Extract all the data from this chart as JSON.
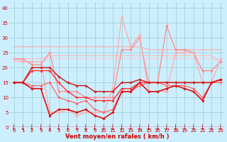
{
  "x": [
    0,
    1,
    2,
    3,
    4,
    5,
    6,
    7,
    8,
    9,
    10,
    11,
    12,
    13,
    14,
    15,
    16,
    17,
    18,
    19,
    20,
    21,
    22,
    23
  ],
  "series": [
    {
      "color": "#ffaaaa",
      "linewidth": 0.8,
      "marker": null,
      "zorder": 1,
      "y": [
        27,
        27,
        27,
        27,
        27,
        27,
        27,
        27,
        27,
        27,
        27,
        27,
        27,
        27,
        27,
        26,
        26,
        26,
        26,
        26,
        26,
        26,
        26,
        26
      ]
    },
    {
      "color": "#ffbbbb",
      "linewidth": 0.8,
      "marker": null,
      "zorder": 1,
      "y": [
        23,
        23,
        23,
        23,
        24,
        24,
        24,
        24,
        24,
        24,
        24,
        24,
        24,
        24,
        24,
        24,
        24,
        24,
        24,
        24,
        24,
        24,
        24,
        22
      ]
    },
    {
      "color": "#ffcccc",
      "linewidth": 0.8,
      "marker": null,
      "zorder": 1,
      "y": [
        22,
        22,
        22,
        22,
        23,
        23,
        23,
        23,
        23,
        23,
        23,
        23,
        23,
        23,
        23,
        23,
        23,
        23,
        23,
        23,
        23,
        23,
        23,
        22
      ]
    },
    {
      "color": "#ff8888",
      "linewidth": 0.9,
      "marker": "D",
      "markersize": 1.8,
      "zorder": 2,
      "y": [
        23,
        23,
        21,
        21,
        25,
        12,
        12,
        12,
        10,
        10,
        10,
        10,
        26,
        26,
        30,
        15,
        15,
        34,
        26,
        26,
        25,
        19,
        19,
        22
      ]
    },
    {
      "color": "#ff6666",
      "linewidth": 0.9,
      "marker": "D",
      "markersize": 1.8,
      "zorder": 3,
      "y": [
        15,
        15,
        14,
        14,
        15,
        10,
        9,
        8,
        9,
        6,
        5,
        6,
        12,
        12,
        14,
        15,
        15,
        14,
        14,
        14,
        13,
        10,
        15,
        15
      ]
    },
    {
      "color": "#dd1111",
      "linewidth": 1.2,
      "marker": "D",
      "markersize": 1.8,
      "zorder": 5,
      "y": [
        15,
        15,
        13,
        13,
        4,
        6,
        6,
        5,
        6,
        4,
        3,
        5,
        12,
        12,
        15,
        12,
        12,
        13,
        14,
        13,
        12,
        9,
        15,
        16
      ]
    },
    {
      "color": "#ff3333",
      "linewidth": 1.0,
      "marker": "D",
      "markersize": 1.8,
      "zorder": 4,
      "y": [
        15,
        15,
        19,
        19,
        19,
        15,
        12,
        10,
        10,
        9,
        9,
        9,
        13,
        13,
        15,
        15,
        15,
        15,
        15,
        15,
        15,
        15,
        15,
        16
      ]
    },
    {
      "color": "#cc2222",
      "linewidth": 1.1,
      "marker": "D",
      "markersize": 1.8,
      "zorder": 4,
      "y": [
        15,
        15,
        20,
        20,
        20,
        17,
        15,
        14,
        14,
        12,
        12,
        12,
        15,
        15,
        16,
        15,
        15,
        15,
        15,
        15,
        15,
        15,
        15,
        16
      ]
    },
    {
      "color": "#ffaaaa",
      "linewidth": 0.9,
      "marker": "D",
      "markersize": 1.8,
      "zorder": 2,
      "y": [
        23,
        22,
        22,
        22,
        5,
        5,
        6,
        4,
        5,
        5,
        5,
        13,
        37,
        27,
        31,
        12,
        12,
        12,
        25,
        25,
        25,
        15,
        15,
        23
      ]
    }
  ],
  "xlim": [
    -0.5,
    23.5
  ],
  "ylim": [
    0,
    42
  ],
  "yticks": [
    0,
    5,
    10,
    15,
    20,
    25,
    30,
    35,
    40
  ],
  "xticks": [
    0,
    1,
    2,
    3,
    4,
    5,
    6,
    7,
    8,
    9,
    10,
    11,
    12,
    13,
    14,
    15,
    16,
    17,
    18,
    19,
    20,
    21,
    22,
    23
  ],
  "xlabel": "Vent moyen/en rafales ( km/h )",
  "xlabel_color": "#cc0000",
  "xlabel_fontsize": 6,
  "tick_color": "#cc0000",
  "tick_fontsize": 5,
  "grid_color": "#99cccc",
  "bg_color": "#cceeff",
  "arrow_color": "#cc0000",
  "fig_bg": "#cceeff",
  "axline_color": "#cc0000"
}
